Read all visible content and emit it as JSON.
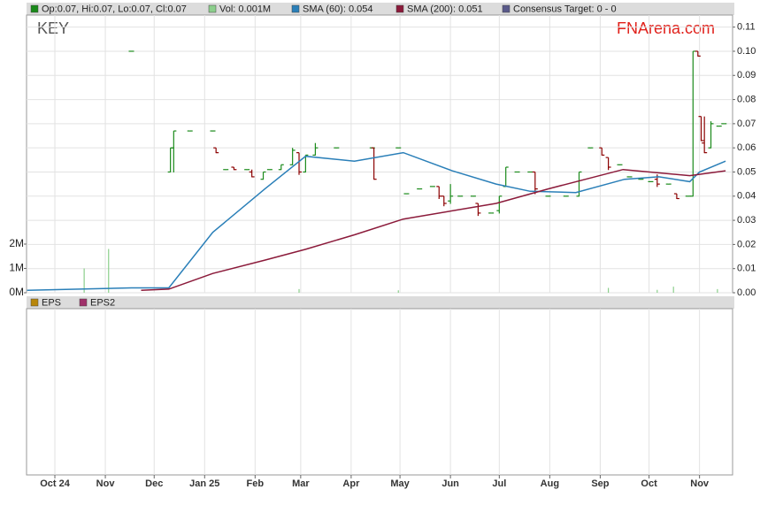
{
  "chart_data": [
    {
      "type": "ohlc",
      "symbol": "KEY",
      "brand": "FNArena.com",
      "xlim": [
        -17.4,
        416.3
      ],
      "ylim": [
        0,
        0.115
      ],
      "yticks": [
        {
          "value": 0,
          "label": "0.00"
        },
        0.01,
        0.02,
        0.03,
        0.04,
        0.05,
        0.06,
        0.07,
        0.08,
        0.09,
        {
          "value": 0.1,
          "label": "0.10"
        },
        0.11
      ],
      "y2lim": [
        0,
        11.42
      ],
      "y2ticks": [
        {
          "value": 0,
          "label": "0M"
        },
        {
          "value": 1,
          "label": "1M"
        },
        {
          "value": 2,
          "label": "2M"
        }
      ],
      "grid": true,
      "series": [
        {
          "name": "Op:0.07, Hi:0.07, Lo:0.07, Cl:0.07",
          "color": "#1a8a1a",
          "down_color": "#8b0000",
          "x": [
            47,
            71,
            73,
            83,
            97,
            99,
            105,
            110,
            118,
            121,
            128,
            132,
            139,
            146,
            150,
            154,
            160,
            173,
            195,
            196,
            211,
            216,
            224,
            232,
            236,
            239,
            243,
            249,
            257,
            260,
            268,
            273,
            277,
            284,
            292,
            295,
            303,
            314,
            322,
            329,
            336,
            340,
            347,
            353,
            360,
            366,
            370,
            377,
            382,
            389,
            392,
            395,
            397,
            399,
            403,
            408,
            411
          ],
          "open": [
            0.1,
            0.05,
            0.06,
            0.067,
            0.067,
            0.06,
            0.051,
            0.052,
            0.051,
            0.05,
            0.047,
            0.051,
            0.051,
            0.053,
            0.058,
            0.05,
            0.057,
            0.06,
            0.06,
            0.06,
            0.06,
            0.041,
            0.043,
            0.044,
            0.044,
            0.04,
            0.038,
            0.04,
            0.04,
            0.037,
            0.033,
            0.034,
            0.044,
            0.05,
            0.05,
            0.05,
            0.04,
            0.04,
            0.04,
            0.06,
            0.06,
            0.056,
            0.053,
            0.048,
            0.047,
            0.046,
            0.047,
            0.045,
            0.041,
            0.04,
            0.04,
            0.1,
            0.073,
            0.062,
            0.06,
            0.069,
            0.07
          ],
          "high": [
            0.1,
            0.06,
            0.067,
            0.067,
            0.067,
            0.06,
            0.051,
            0.052,
            0.051,
            0.051,
            0.05,
            0.051,
            0.053,
            0.06,
            0.058,
            0.057,
            0.062,
            0.06,
            0.06,
            0.06,
            0.06,
            0.041,
            0.043,
            0.044,
            0.044,
            0.04,
            0.045,
            0.04,
            0.04,
            0.037,
            0.033,
            0.04,
            0.052,
            0.05,
            0.05,
            0.05,
            0.04,
            0.04,
            0.05,
            0.06,
            0.06,
            0.056,
            0.053,
            0.048,
            0.047,
            0.046,
            0.049,
            0.045,
            0.041,
            0.04,
            0.1,
            0.1,
            0.073,
            0.073,
            0.071,
            0.069,
            0.07
          ],
          "low": [
            0.1,
            0.05,
            0.05,
            0.067,
            0.067,
            0.058,
            0.051,
            0.051,
            0.051,
            0.048,
            0.047,
            0.051,
            0.051,
            0.053,
            0.049,
            0.05,
            0.057,
            0.06,
            0.06,
            0.047,
            0.06,
            0.041,
            0.043,
            0.044,
            0.039,
            0.036,
            0.037,
            0.04,
            0.04,
            0.032,
            0.033,
            0.033,
            0.044,
            0.05,
            0.05,
            0.041,
            0.04,
            0.04,
            0.04,
            0.06,
            0.057,
            0.051,
            0.053,
            0.048,
            0.047,
            0.046,
            0.044,
            0.045,
            0.039,
            0.04,
            0.04,
            0.098,
            0.063,
            0.058,
            0.06,
            0.069,
            0.07
          ],
          "close": [
            0.1,
            0.06,
            0.067,
            0.067,
            0.067,
            0.058,
            0.051,
            0.051,
            0.051,
            0.048,
            0.05,
            0.051,
            0.053,
            0.059,
            0.05,
            0.057,
            0.06,
            0.06,
            0.06,
            0.047,
            0.06,
            0.041,
            0.043,
            0.044,
            0.04,
            0.037,
            0.04,
            0.04,
            0.04,
            0.033,
            0.033,
            0.04,
            0.052,
            0.05,
            0.05,
            0.043,
            0.04,
            0.04,
            0.05,
            0.06,
            0.057,
            0.052,
            0.053,
            0.048,
            0.047,
            0.046,
            0.045,
            0.045,
            0.039,
            0.04,
            0.1,
            0.098,
            0.063,
            0.058,
            0.07,
            0.069,
            0.07
          ]
        },
        {
          "name": "Vol: 0.001M",
          "color": "#8ccf8c",
          "axis": "y2",
          "x": [
            18,
            33,
            150,
            211,
            340,
            370,
            380,
            407
          ],
          "values": [
            1.0,
            1.8,
            0.15,
            0.1,
            0.2,
            0.12,
            0.25,
            0.15
          ]
        },
        {
          "name": "SMA (60): 0.054",
          "color": "#2a7fb8",
          "x": [
            -17,
            47,
            70,
            97,
            129,
            154,
            184,
            214,
            244,
            271,
            292,
            320,
            350,
            371,
            390,
            396,
            412
          ],
          "values": [
            0.001,
            0.002,
            0.002,
            0.025,
            0.043,
            0.0565,
            0.0545,
            0.058,
            0.0505,
            0.045,
            0.042,
            0.0415,
            0.047,
            0.048,
            0.046,
            0.05,
            0.0545
          ]
        },
        {
          "name": "SMA (200): 0.051",
          "color": "#8b1a3a",
          "x": [
            53,
            70,
            97,
            129,
            154,
            184,
            214,
            271,
            303,
            349,
            390,
            412
          ],
          "values": [
            0.001,
            0.0015,
            0.008,
            0.0135,
            0.018,
            0.024,
            0.0305,
            0.037,
            0.043,
            0.051,
            0.0485,
            0.0505
          ]
        },
        {
          "name": "Consensus Target: 0 - 0",
          "color": "#5a5a8a",
          "x": [],
          "values": []
        }
      ]
    },
    {
      "type": "line",
      "xlim": [
        -17.4,
        416.3
      ],
      "xticks": [
        {
          "value": 0,
          "label": "Oct 24"
        },
        {
          "value": 31,
          "label": "Nov"
        },
        {
          "value": 61,
          "label": "Dec"
        },
        {
          "value": 92,
          "label": "Jan 25"
        },
        {
          "value": 123,
          "label": "Feb"
        },
        {
          "value": 151,
          "label": "Mar"
        },
        {
          "value": 182,
          "label": "Apr"
        },
        {
          "value": 212,
          "label": "May"
        },
        {
          "value": 243,
          "label": "Jun"
        },
        {
          "value": 273,
          "label": "Jul"
        },
        {
          "value": 304,
          "label": "Aug"
        },
        {
          "value": 335,
          "label": "Sep"
        },
        {
          "value": 365,
          "label": "Oct"
        },
        {
          "value": 396,
          "label": "Nov"
        }
      ],
      "grid": true,
      "series": [
        {
          "name": "EPS",
          "color": "#b8860b",
          "x": [],
          "values": []
        },
        {
          "name": "EPS2",
          "color": "#a0306a",
          "x": [],
          "values": []
        }
      ]
    }
  ]
}
